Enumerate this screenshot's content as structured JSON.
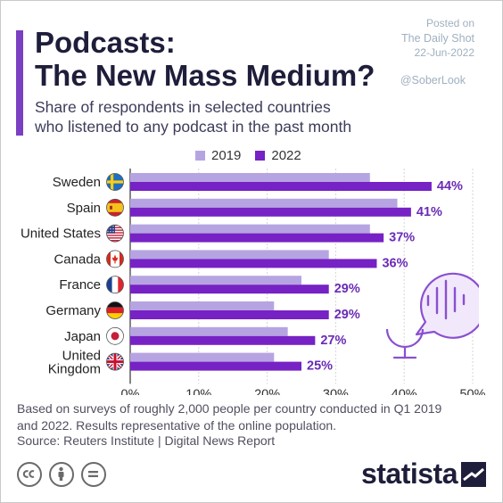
{
  "header": {
    "title_line1": "Podcasts:",
    "title_line2": "The New Mass Medium?",
    "subtitle_line1": "Share of respondents in selected countries",
    "subtitle_line2": "who listened to any podcast in the past month"
  },
  "watermark": {
    "posted_on": "Posted on",
    "source_name": "The Daily Shot",
    "date": "22-Jun-2022",
    "handle": "@SoberLook"
  },
  "colors": {
    "series_2019": "#b6a4e2",
    "series_2022": "#7622c4",
    "accent": "#7a3fc2",
    "value_label": "#6a2bb5"
  },
  "chart_data": {
    "type": "bar",
    "orientation": "horizontal",
    "categories": [
      "Sweden",
      "Spain",
      "United States",
      "Canada",
      "France",
      "Germany",
      "Japan",
      "United Kingdom"
    ],
    "series": [
      {
        "name": "2019",
        "values": [
          35,
          39,
          35,
          29,
          25,
          21,
          23,
          21
        ]
      },
      {
        "name": "2022",
        "values": [
          44,
          41,
          37,
          36,
          29,
          29,
          27,
          25
        ]
      }
    ],
    "value_labels": [
      "44%",
      "41%",
      "37%",
      "36%",
      "29%",
      "29%",
      "27%",
      "25%"
    ],
    "x_ticks": [
      "0%",
      "10%",
      "20%",
      "30%",
      "40%",
      "50%"
    ],
    "xlim": [
      0,
      50
    ],
    "grid": true,
    "legend_position": "top"
  },
  "icons": {
    "flags": [
      "sweden-flag-icon",
      "spain-flag-icon",
      "usa-flag-icon",
      "canada-flag-icon",
      "france-flag-icon",
      "germany-flag-icon",
      "japan-flag-icon",
      "uk-flag-icon"
    ],
    "decoration": "podcast-microphone-icon",
    "license": [
      "creative-commons-icon",
      "attribution-icon",
      "non-derivative-icon"
    ]
  },
  "footer": {
    "note_line1": "Based on surveys of roughly 2,000 people per country conducted in Q1 2019",
    "note_line2": "and 2022. Results representative of the online population.",
    "source": "Source: Reuters Institute | Digital News Report",
    "logo": "statista"
  }
}
